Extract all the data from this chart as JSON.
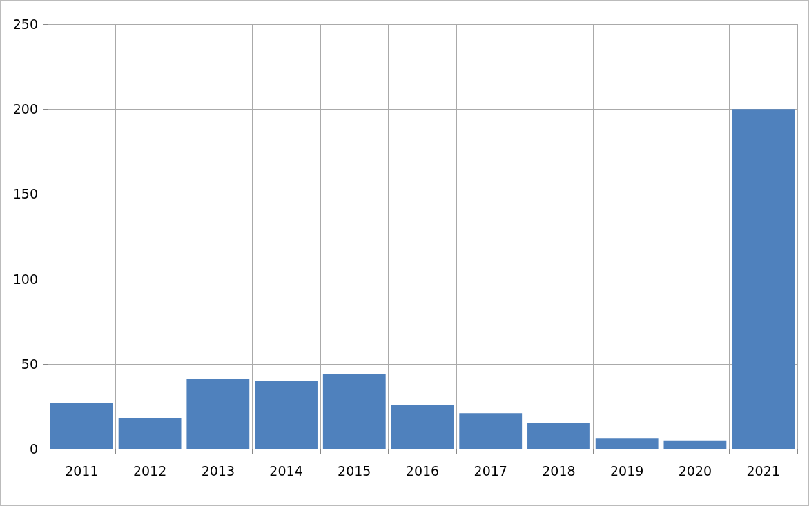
{
  "chart_data": {
    "type": "bar",
    "categories": [
      "2011",
      "2012",
      "2013",
      "2014",
      "2015",
      "2016",
      "2017",
      "2018",
      "2019",
      "2020",
      "2021"
    ],
    "values": [
      27,
      18,
      41,
      40,
      44,
      26,
      21,
      15,
      6,
      5,
      200
    ],
    "color": "#4f81bd",
    "ylim": [
      0,
      250
    ],
    "yticks": [
      0,
      50,
      100,
      150,
      200,
      250
    ],
    "grid": true
  }
}
